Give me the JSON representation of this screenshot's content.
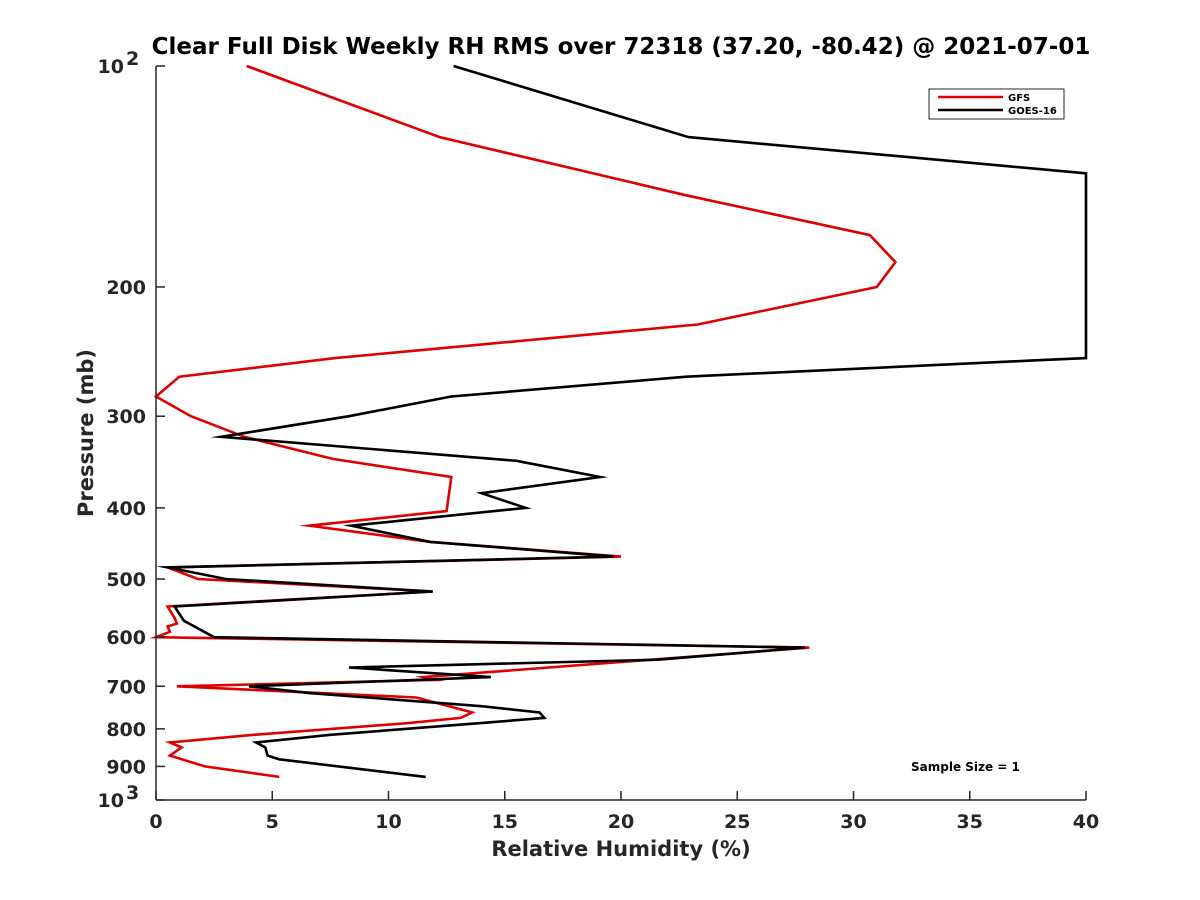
{
  "chart_data": {
    "type": "line",
    "title": "Clear Full Disk Weekly RH RMS over 72318 (37.20, -80.42) @ 2021-07-01",
    "xlabel": "Relative Humidity (%)",
    "ylabel": "Pressure (mb)",
    "xlim": [
      0,
      40
    ],
    "ylim": [
      100,
      1000
    ],
    "yscale": "log",
    "y_reversed": true,
    "grid": false,
    "legend_position": "top-right",
    "x_ticks": [
      "0",
      "5",
      "10",
      "15",
      "20",
      "25",
      "30",
      "35",
      "40"
    ],
    "y_ticks": [
      {
        "value": 100,
        "base": "10",
        "exp": "2"
      },
      {
        "value": 200,
        "base": "200",
        "exp": ""
      },
      {
        "value": 300,
        "base": "300",
        "exp": ""
      },
      {
        "value": 400,
        "base": "400",
        "exp": ""
      },
      {
        "value": 500,
        "base": "500",
        "exp": ""
      },
      {
        "value": 600,
        "base": "600",
        "exp": ""
      },
      {
        "value": 700,
        "base": "700",
        "exp": ""
      },
      {
        "value": 800,
        "base": "800",
        "exp": ""
      },
      {
        "value": 900,
        "base": "900",
        "exp": ""
      },
      {
        "value": 1000,
        "base": "10",
        "exp": "3"
      }
    ],
    "annotation": "Sample Size = 1",
    "series": [
      {
        "name": "GFS",
        "color": "#e00000",
        "points": [
          [
            3.9,
            100
          ],
          [
            12.2,
            125
          ],
          [
            22.8,
            150
          ],
          [
            30.7,
            170
          ],
          [
            31.8,
            185
          ],
          [
            31.0,
            200
          ],
          [
            23.3,
            225
          ],
          [
            7.7,
            250
          ],
          [
            1.0,
            265
          ],
          [
            0.0,
            282
          ],
          [
            1.5,
            300
          ],
          [
            3.8,
            320
          ],
          [
            7.6,
            343
          ],
          [
            12.7,
            363
          ],
          [
            12.5,
            404
          ],
          [
            6.6,
            423
          ],
          [
            11.8,
            445
          ],
          [
            20.0,
            466
          ],
          [
            0.5,
            482
          ],
          [
            1.8,
            500
          ],
          [
            11.9,
            520
          ],
          [
            0.5,
            545
          ],
          [
            0.8,
            565
          ],
          [
            0.9,
            575
          ],
          [
            0.5,
            580
          ],
          [
            0.6,
            590
          ],
          [
            0.0,
            600
          ],
          [
            28.1,
            620
          ],
          [
            11.5,
            680
          ],
          [
            12.0,
            686
          ],
          [
            0.9,
            700
          ],
          [
            11.2,
            725
          ],
          [
            13.6,
            760
          ],
          [
            13.1,
            773
          ],
          [
            10.8,
            786
          ],
          [
            4.2,
            815
          ],
          [
            0.6,
            835
          ],
          [
            1.1,
            848
          ],
          [
            0.6,
            870
          ],
          [
            2.1,
            900
          ],
          [
            5.3,
            930
          ]
        ]
      },
      {
        "name": "GOES-16",
        "color": "#000000",
        "points": [
          [
            12.8,
            100
          ],
          [
            22.9,
            125
          ],
          [
            40.0,
            140
          ],
          [
            40.0,
            250
          ],
          [
            37.6,
            252
          ],
          [
            22.8,
            265
          ],
          [
            12.7,
            282
          ],
          [
            8.3,
            300
          ],
          [
            2.8,
            320
          ],
          [
            15.5,
            345
          ],
          [
            19.1,
            363
          ],
          [
            14.0,
            382
          ],
          [
            15.9,
            400
          ],
          [
            8.4,
            423
          ],
          [
            11.8,
            445
          ],
          [
            19.7,
            466
          ],
          [
            0.5,
            482
          ],
          [
            3.0,
            500
          ],
          [
            11.9,
            520
          ],
          [
            0.8,
            545
          ],
          [
            1.2,
            570
          ],
          [
            2.5,
            600
          ],
          [
            27.9,
            620
          ],
          [
            21.6,
            644
          ],
          [
            8.3,
            660
          ],
          [
            14.4,
            680
          ],
          [
            4.0,
            700
          ],
          [
            6.6,
            715
          ],
          [
            14.0,
            745
          ],
          [
            16.5,
            760
          ],
          [
            16.7,
            773
          ],
          [
            13.9,
            786
          ],
          [
            7.5,
            815
          ],
          [
            4.3,
            835
          ],
          [
            4.7,
            848
          ],
          [
            4.8,
            870
          ],
          [
            5.3,
            880
          ],
          [
            11.6,
            930
          ]
        ]
      }
    ]
  }
}
